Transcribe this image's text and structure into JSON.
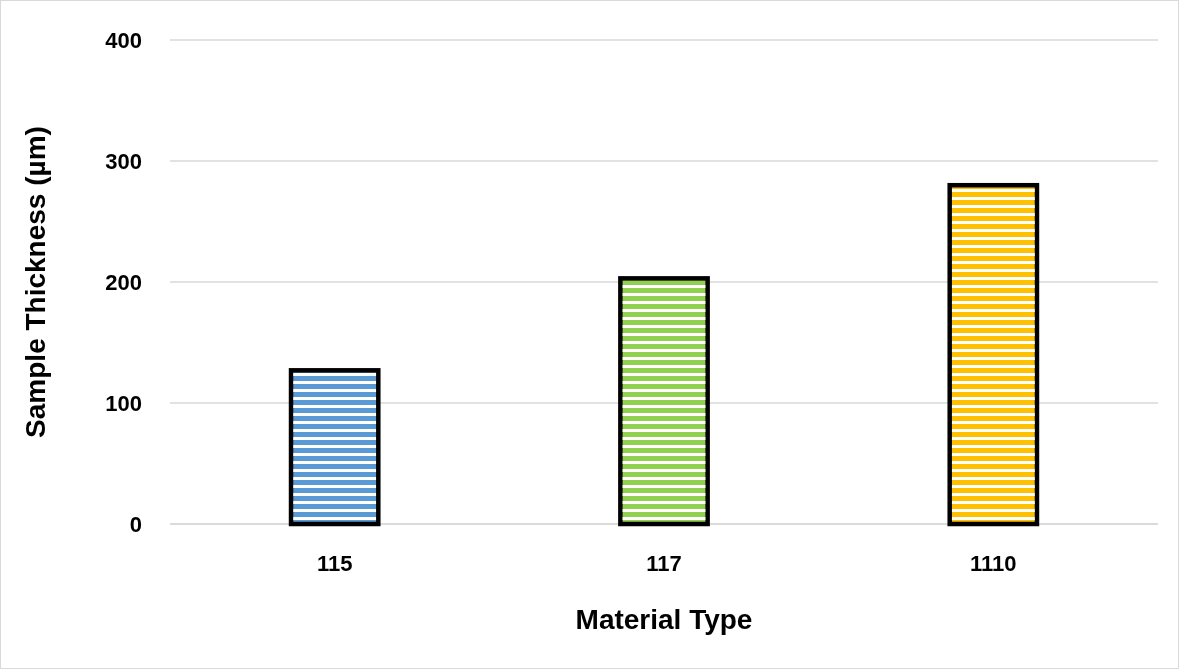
{
  "chart_data": {
    "type": "bar",
    "xlabel": "Material Type",
    "ylabel": "Sample Thickness (µm)",
    "categories": [
      "115",
      "117",
      "1110"
    ],
    "values": [
      127,
      203,
      280
    ],
    "colors": [
      "#5b9bd5",
      "#92d050",
      "#ffc000"
    ],
    "ylim": [
      0,
      400
    ],
    "yticks": [
      0,
      100,
      200,
      300,
      400
    ],
    "grid": "y"
  }
}
